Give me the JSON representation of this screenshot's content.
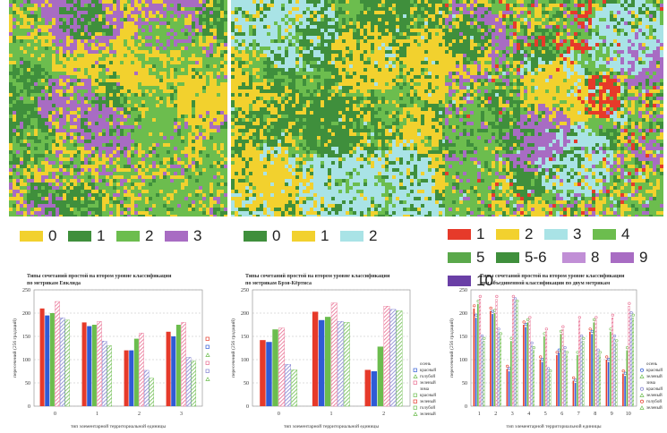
{
  "colors": {
    "yellow": "#f2d12e",
    "dark_green": "#3f8f3c",
    "light_green": "#6cbd4e",
    "purple": "#a86cc3",
    "cyan": "#a9e3e6",
    "red": "#e63a2a",
    "blue": "#2f5bd6",
    "pink": "#e86a8e",
    "dark_purple": "#6a3fa6",
    "violet": "#c18fd6"
  },
  "maps": [
    {
      "name": "map-metric-1",
      "palette": [
        "#f2d12e",
        "#6cbd4e",
        "#3f8f3c",
        "#a86cc3"
      ],
      "weights": [
        0.34,
        0.38,
        0.12,
        0.16
      ],
      "center_color": "#a86cc3"
    },
    {
      "name": "map-metric-2",
      "palette": [
        "#3f8f3c",
        "#f2d12e",
        "#6cbd4e",
        "#a9e3e6"
      ],
      "weights": [
        0.52,
        0.32,
        0.14,
        0.02
      ],
      "center_color": "#3f8f3c"
    },
    {
      "name": "map-combined",
      "palette": [
        "#6cbd4e",
        "#f2d12e",
        "#a86cc3",
        "#3f8f3c",
        "#e63a2a",
        "#a9e3e6"
      ],
      "weights": [
        0.36,
        0.26,
        0.16,
        0.14,
        0.05,
        0.03
      ],
      "center_color": "#a86cc3"
    }
  ],
  "legends": [
    {
      "items": [
        {
          "label": "0",
          "color": "#f2d12e"
        },
        {
          "label": "1",
          "color": "#3f8f3c"
        },
        {
          "label": "2",
          "color": "#6cbd4e"
        },
        {
          "label": "3",
          "color": "#a86cc3"
        }
      ]
    },
    {
      "items": [
        {
          "label": "0",
          "color": "#3f8f3c"
        },
        {
          "label": "1",
          "color": "#f2d12e"
        },
        {
          "label": "2",
          "color": "#a9e3e6"
        }
      ]
    },
    {
      "items": [
        {
          "label": "1",
          "color": "#e63a2a"
        },
        {
          "label": "2",
          "color": "#f2d12e"
        },
        {
          "label": "3",
          "color": "#a9e3e6"
        },
        {
          "label": "4",
          "color": "#6cbd4e"
        },
        {
          "label": "5",
          "color": "#5aa84a"
        },
        {
          "label": "5-6",
          "color": "#3f8f3c"
        },
        {
          "label": "8",
          "color": "#c18fd6"
        },
        {
          "label": "9",
          "color": "#a86cc3"
        },
        {
          "label": "10",
          "color": "#6a3fa6"
        }
      ]
    }
  ],
  "chart_data": [
    {
      "type": "bar",
      "title": [
        "Типы сочетаний простой на втором уровне классификации",
        "по метрикам Евклида"
      ],
      "ylabel": "пересечений (256 градаций)",
      "xlabel": "тип элементарной территориальной единицы",
      "ylim": [
        0,
        250
      ],
      "yticks": [
        0,
        50,
        100,
        150,
        200,
        250
      ],
      "categories": [
        "0",
        "1",
        "2",
        "3"
      ],
      "series": [
        {
          "name": "осень красный",
          "color": "#e63a2a",
          "pattern": "solid",
          "values": [
            210,
            180,
            120,
            160
          ]
        },
        {
          "name": "осень зеленый",
          "color": "#2f5bd6",
          "pattern": "solid",
          "values": [
            195,
            172,
            120,
            150
          ]
        },
        {
          "name": "осень голубой",
          "color": "#6cbd4e",
          "pattern": "solid",
          "values": [
            200,
            175,
            145,
            175
          ]
        },
        {
          "name": "зима красный",
          "color": "#e86a8e",
          "pattern": "hatch",
          "values": [
            225,
            182,
            157,
            180
          ]
        },
        {
          "name": "зима голубой",
          "color": "#7f7fd0",
          "pattern": "hatch",
          "values": [
            190,
            140,
            77,
            105
          ]
        },
        {
          "name": "зима зеленый",
          "color": "#6cbd4e",
          "pattern": "hatch",
          "values": [
            185,
            130,
            60,
            97
          ]
        }
      ],
      "legend": {
        "labels": [
          "",
          "",
          "",
          "",
          "",
          ""
        ],
        "markers": [
          "square",
          "square",
          "triangle",
          "square",
          "square",
          "triangle"
        ]
      }
    },
    {
      "type": "bar",
      "title": [
        "Типы сочетаний простой на втором уровне классификации",
        "по метрикам Брэя-Кёртиса"
      ],
      "ylabel": "пересечений (256 градаций)",
      "xlabel": "тип элементарной территориальной единицы",
      "ylim": [
        0,
        250
      ],
      "yticks": [
        0,
        50,
        100,
        150,
        200,
        250
      ],
      "categories": [
        "0",
        "1",
        "2"
      ],
      "series": [
        {
          "name": "осень красный",
          "color": "#e63a2a",
          "pattern": "solid",
          "values": [
            142,
            203,
            78
          ]
        },
        {
          "name": "осень зеленый",
          "color": "#2f5bd6",
          "pattern": "solid",
          "values": [
            138,
            185,
            75
          ]
        },
        {
          "name": "осень голубой",
          "color": "#6cbd4e",
          "pattern": "solid",
          "values": [
            165,
            192,
            128
          ]
        },
        {
          "name": "зима красный",
          "color": "#e86a8e",
          "pattern": "hatch",
          "values": [
            168,
            222,
            215
          ]
        },
        {
          "name": "зима голубой",
          "color": "#7f7fd0",
          "pattern": "hatch",
          "values": [
            90,
            182,
            208
          ]
        },
        {
          "name": "зима зеленый",
          "color": "#6cbd4e",
          "pattern": "hatch",
          "values": [
            78,
            180,
            205
          ]
        }
      ],
      "legend": {
        "labels": [
          "осень",
          "красный",
          "голубой",
          "зеленый",
          "зима",
          "красный",
          "зеленый",
          "голубой",
          "зеленый"
        ],
        "markers": [
          "",
          "square",
          "triangle",
          "square",
          "",
          "square",
          "square",
          "square",
          "triangle"
        ]
      }
    },
    {
      "type": "bar",
      "title": [
        "Типы сочетаний простой на втором уровне классификации",
        "при объединенной классификации по двум метрикам"
      ],
      "ylabel": "пересечений (256 градаций)",
      "xlabel": "тип элементарной территориальной единицы",
      "ylim": [
        0,
        250
      ],
      "yticks": [
        0,
        50,
        100,
        150,
        200,
        250
      ],
      "categories": [
        "1",
        "2",
        "3",
        "4",
        "5",
        "6",
        "7",
        "8",
        "9",
        "10"
      ],
      "series": [
        {
          "name": "осень красный",
          "color": "#e63a2a",
          "pattern": "solid",
          "values": [
            210,
            205,
            80,
            175,
            100,
            110,
            55,
            160,
            100,
            70
          ]
        },
        {
          "name": "осень зеленый",
          "color": "#2f5bd6",
          "pattern": "solid",
          "values": [
            190,
            198,
            75,
            170,
            95,
            115,
            50,
            155,
            95,
            65
          ]
        },
        {
          "name": "осень голубой",
          "color": "#6cbd4e",
          "pattern": "solid",
          "values": [
            220,
            200,
            140,
            180,
            150,
            155,
            110,
            180,
            160,
            120
          ]
        },
        {
          "name": "зима красный",
          "color": "#e86a8e",
          "pattern": "hatch",
          "values": [
            230,
            230,
            230,
            185,
            160,
            165,
            185,
            185,
            190,
            215
          ]
        },
        {
          "name": "зима голубой",
          "color": "#7f7fd0",
          "pattern": "hatch",
          "values": [
            145,
            160,
            225,
            130,
            75,
            120,
            145,
            115,
            145,
            195
          ]
        },
        {
          "name": "зима зеленый",
          "color": "#6cbd4e",
          "pattern": "hatch",
          "values": [
            140,
            150,
            220,
            120,
            70,
            110,
            140,
            110,
            135,
            190
          ]
        }
      ],
      "legend": {
        "labels": [
          "осень",
          "красный",
          "зеленый",
          "зима",
          "красный",
          "зеленый",
          "голубой",
          "зеленый"
        ],
        "markers": [
          "",
          "circle",
          "triangle",
          "",
          "circle",
          "triangle",
          "circle",
          "triangle"
        ]
      }
    }
  ]
}
